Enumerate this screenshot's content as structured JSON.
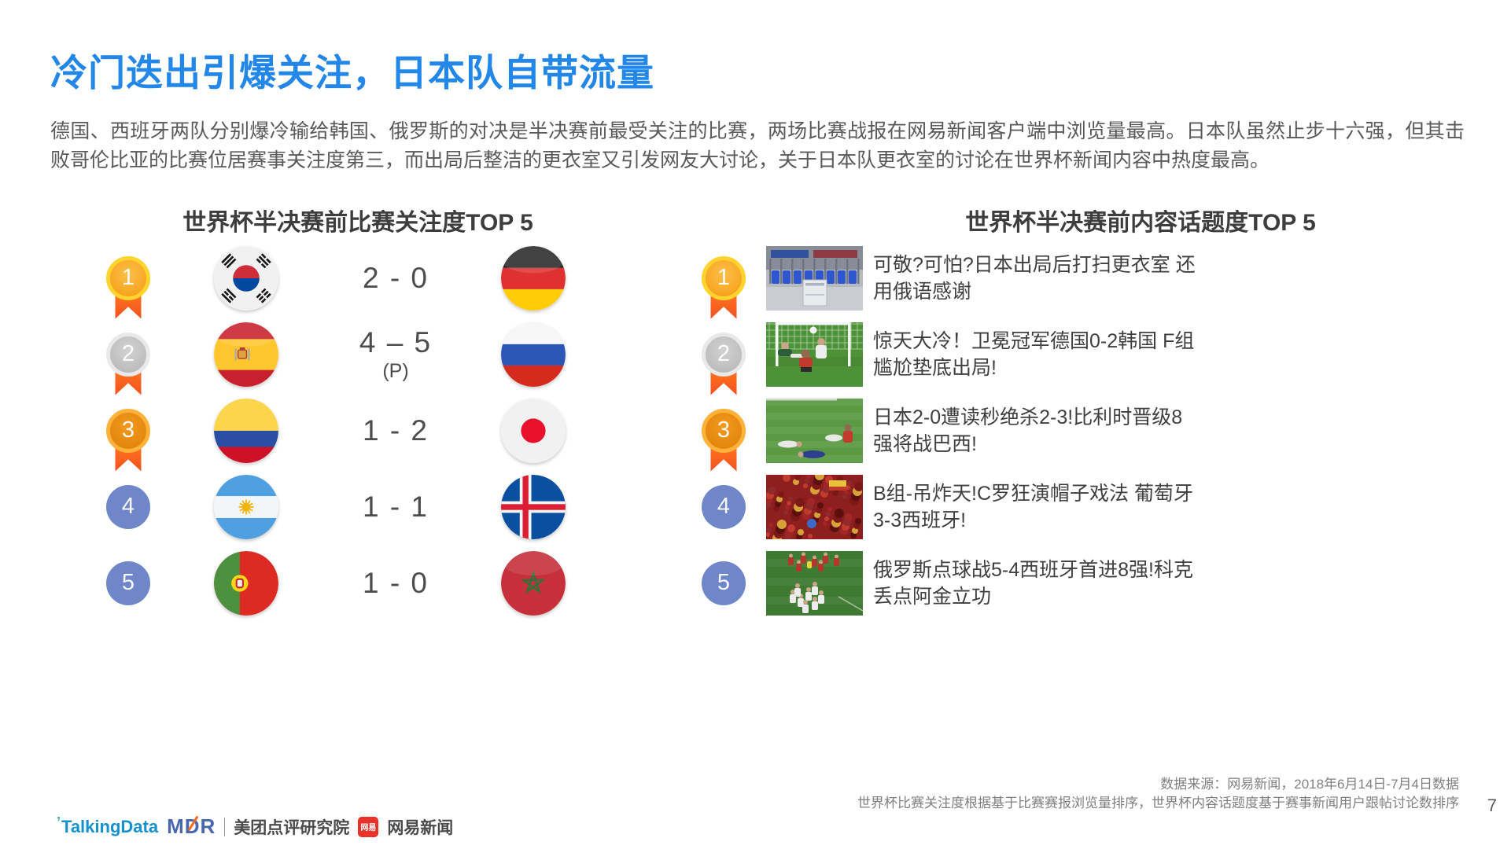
{
  "page": {
    "number": "7"
  },
  "colors": {
    "title_blue": "#2287E8",
    "body_text": "#595959",
    "ribbon_orange": "#F4511E",
    "rank_blue": "#6F86C8",
    "gold": "#F79A10",
    "silver": "#B5B5B5",
    "bronze": "#DE7F06"
  },
  "title": "冷门迭出引爆关注，日本队自带流量",
  "intro": "德国、西班牙两队分别爆冷输给韩国、俄罗斯的对决是半决赛前最受关注的比赛，两场比赛战报在网易新闻客户端中浏览量最高。日本队虽然止步十六强，但其击败哥伦比亚的比赛位居赛事关注度第三，而出局后整洁的更衣室又引发网友大讨论，关于日本队更衣室的讨论在世界杯新闻内容中热度最高。",
  "left_panel": {
    "title": "世界杯半决赛前比赛关注度TOP 5",
    "rows": [
      {
        "rank": "1",
        "medal": "gold",
        "home": "south-korea",
        "score": "2 - 0",
        "note": "",
        "away": "germany"
      },
      {
        "rank": "2",
        "medal": "silver",
        "home": "spain",
        "score": "4 – 5",
        "note": "(P)",
        "away": "russia"
      },
      {
        "rank": "3",
        "medal": "bronze",
        "home": "colombia",
        "score": "1 - 2",
        "note": "",
        "away": "japan"
      },
      {
        "rank": "4",
        "medal": "plain",
        "home": "argentina",
        "score": "1 - 1",
        "note": "",
        "away": "iceland"
      },
      {
        "rank": "5",
        "medal": "plain",
        "home": "portugal",
        "score": "1 - 0",
        "note": "",
        "away": "morocco"
      }
    ]
  },
  "right_panel": {
    "title": "世界杯半决赛前内容话题度TOP 5",
    "rows": [
      {
        "rank": "1",
        "medal": "gold",
        "image": "locker-room",
        "text": "可敬?可怕?日本出局后打扫更衣室 还用俄语感谢"
      },
      {
        "rank": "2",
        "medal": "silver",
        "image": "goal-save",
        "text": "惊天大冷！卫冕冠军德国0-2韩国 F组尴尬垫底出局!"
      },
      {
        "rank": "3",
        "medal": "bronze",
        "image": "players-down",
        "text": "日本2-0遭读秒绝杀2-3!比利时晋级8强将战巴西!"
      },
      {
        "rank": "4",
        "medal": "plain",
        "image": "red-crowd",
        "text": "B组-吊炸天!C罗狂演帽子戏法 葡萄牙3-3西班牙!"
      },
      {
        "rank": "5",
        "medal": "plain",
        "image": "celebration",
        "text": "俄罗斯点球战5-4西班牙首进8强!科克丢点阿金立功"
      }
    ]
  },
  "footer": {
    "source_line1": "数据来源：网易新闻，2018年6月14日-7月4日数据",
    "source_line2": "世界杯比赛关注度根据基于比赛赛报浏览量排序，世界杯内容话题度基于赛事新闻用户跟帖讨论数排序",
    "logos": {
      "talkingdata": "TalkingData",
      "mdr_m": "M",
      "mdr_d": "D",
      "mdr_r": "R",
      "mdr_label": "美团点评研究院",
      "netease_icon": "网易",
      "netease_label": "网易新闻"
    }
  }
}
